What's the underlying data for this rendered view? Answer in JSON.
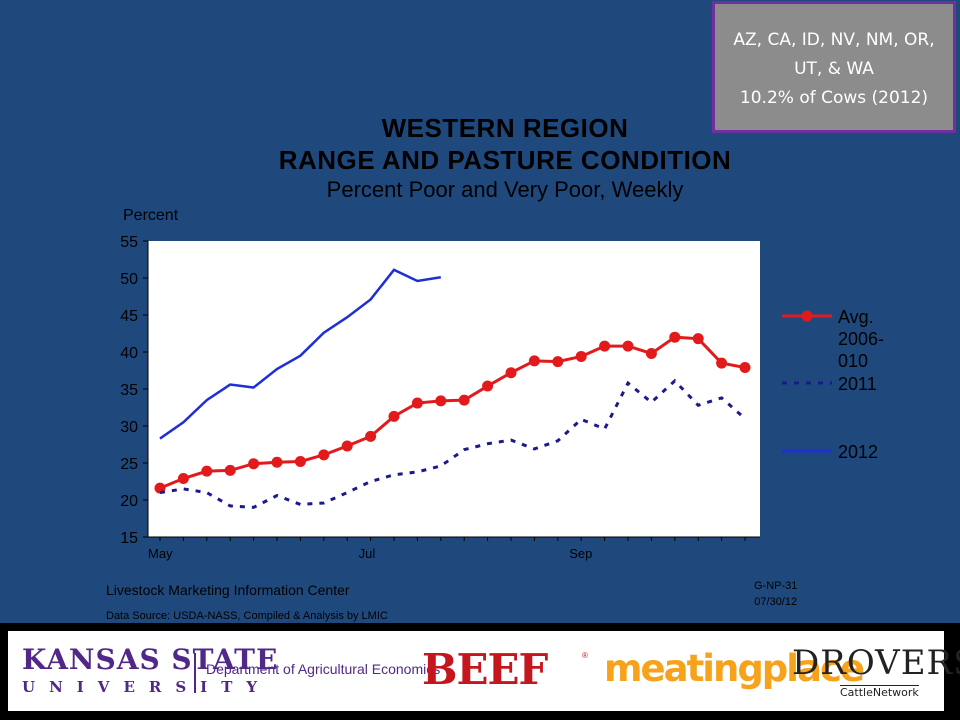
{
  "note_box": {
    "line1": "AZ, CA, ID, NV, NM, OR,",
    "line2": "UT, & WA",
    "line3": "10.2% of Cows (2012)"
  },
  "footer": {
    "source_org": "Livestock Marketing Information Center",
    "data_source": "Data Source:  USDA-NASS, Compiled & Analysis by LMIC",
    "chart_code": "G-NP-31",
    "chart_date": "07/30/12"
  },
  "logos": {
    "ksu_name": "KANSAS STATE",
    "ksu_univ": "UNIVERSITY",
    "department": "Department of Agricultural Economics",
    "beef": "BEEF",
    "beef_reg": "®",
    "meatingplace": "meatingplace",
    "drovers": "DROVERS",
    "drovers_tag": "CattleNetwork"
  },
  "colors": {
    "background": "#1f497d",
    "avg": "#e31a1c",
    "s2011": "#1a1a8c",
    "s2012": "#1f2fd6"
  },
  "chart_data": {
    "type": "line",
    "title_line1": "WESTERN  REGION",
    "title_line2": "RANGE  AND  PASTURE  CONDITION",
    "subtitle": "Percent Poor and Very Poor, Weekly",
    "ylabel": "Percent",
    "ylim": [
      15,
      55
    ],
    "yticks": [
      15,
      20,
      25,
      30,
      35,
      40,
      45,
      50,
      55
    ],
    "x_tick_labels": [
      {
        "label": "May",
        "week": 0
      },
      {
        "label": "Jul",
        "week": 9
      },
      {
        "label": "Sep",
        "week": 18
      }
    ],
    "x_range_weeks": [
      0,
      25.5
    ],
    "legend_placement": "right",
    "series": [
      {
        "name": "Avg. 2006-010",
        "legend_lines": [
          "Avg.",
          "2006-",
          "010"
        ],
        "style": "solid-markers",
        "values": [
          21.6,
          22.9,
          23.9,
          24.0,
          24.9,
          25.1,
          25.2,
          26.1,
          27.3,
          28.6,
          31.3,
          33.1,
          33.4,
          33.5,
          35.4,
          37.2,
          38.8,
          38.7,
          39.4,
          40.8,
          40.8,
          39.8,
          42.0,
          41.8,
          38.5,
          37.9
        ]
      },
      {
        "name": "2011",
        "legend_lines": [
          "2011"
        ],
        "style": "dotted",
        "values": [
          21.0,
          21.5,
          21.0,
          19.2,
          19.0,
          20.6,
          19.4,
          19.6,
          21.0,
          22.5,
          23.4,
          23.8,
          24.6,
          26.8,
          27.6,
          28.1,
          26.9,
          28.0,
          30.9,
          29.6,
          35.8,
          33.2,
          36.1,
          32.8,
          33.8,
          31.0
        ]
      },
      {
        "name": "2012",
        "legend_lines": [
          "2012"
        ],
        "style": "solid",
        "values": [
          28.3,
          30.5,
          33.5,
          35.6,
          35.2,
          37.7,
          39.5,
          42.6,
          44.7,
          47.1,
          51.1,
          49.6,
          50.1
        ]
      }
    ]
  }
}
